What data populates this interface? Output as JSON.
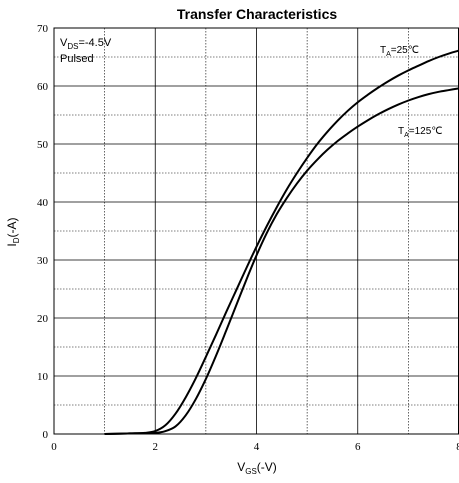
{
  "chart_data": {
    "type": "line",
    "title": "Transfer Characteristics",
    "xlabel": {
      "main": "V",
      "sub": "GS",
      "rest": "(-V)"
    },
    "ylabel": {
      "main": "I",
      "sub": "D",
      "rest": "(-A)"
    },
    "xlim": [
      0,
      8
    ],
    "ylim": [
      0,
      70
    ],
    "x_ticks": [
      0,
      2,
      4,
      6,
      8
    ],
    "x_tick_labels": [
      "0",
      "2",
      "4",
      "6",
      "8"
    ],
    "y_ticks": [
      0,
      10,
      20,
      30,
      40,
      50,
      60,
      70
    ],
    "y_tick_labels": [
      "0",
      "10",
      "20",
      "30",
      "40",
      "50",
      "60",
      "70"
    ],
    "grid": true,
    "conditions": {
      "line1": {
        "main": "V",
        "sub": "DS",
        "rest": "=-4.5V"
      },
      "line2": "Pulsed"
    },
    "series": [
      {
        "name": "TA=25℃",
        "label": {
          "main": "T",
          "sub": "A",
          "rest": "=25℃"
        },
        "x": [
          1.0,
          1.5,
          1.8,
          2.0,
          2.2,
          2.4,
          2.6,
          2.8,
          3.0,
          3.2,
          3.4,
          3.6,
          3.8,
          4.0,
          4.2,
          4.4,
          4.6,
          4.8,
          5.0,
          5.2,
          5.4,
          5.6,
          5.8,
          6.0,
          6.2,
          6.4,
          6.6,
          6.8,
          7.0,
          7.2,
          7.4,
          7.6,
          7.8,
          8.0
        ],
        "y": [
          0,
          0.1,
          0.2,
          0.5,
          1.5,
          3.5,
          6.3,
          9.6,
          13.3,
          17.1,
          21.0,
          24.8,
          28.6,
          32.3,
          35.8,
          39.1,
          42.2,
          45.0,
          47.6,
          50.0,
          52.1,
          54.0,
          55.7,
          57.2,
          58.5,
          59.7,
          60.8,
          61.8,
          62.7,
          63.5,
          64.3,
          65.0,
          65.6,
          66.1
        ],
        "color": "#000000"
      },
      {
        "name": "TA=125℃",
        "label": {
          "main": "T",
          "sub": "A",
          "rest": "=125℃"
        },
        "x": [
          1.0,
          1.5,
          2.0,
          2.2,
          2.4,
          2.6,
          2.8,
          3.0,
          3.2,
          3.4,
          3.6,
          3.8,
          4.0,
          4.2,
          4.4,
          4.6,
          4.8,
          5.0,
          5.2,
          5.4,
          5.6,
          5.8,
          6.0,
          6.2,
          6.4,
          6.6,
          6.8,
          7.0,
          7.2,
          7.4,
          7.6,
          7.8,
          8.0
        ],
        "y": [
          0,
          0.1,
          0.2,
          0.5,
          1.3,
          3.2,
          6.0,
          9.5,
          13.5,
          17.8,
          22.2,
          26.6,
          30.8,
          34.6,
          37.9,
          40.7,
          43.2,
          45.4,
          47.3,
          49.0,
          50.5,
          51.8,
          53.0,
          54.1,
          55.1,
          56.0,
          56.8,
          57.5,
          58.1,
          58.6,
          59.0,
          59.3,
          59.6
        ],
        "color": "#000000"
      }
    ]
  }
}
